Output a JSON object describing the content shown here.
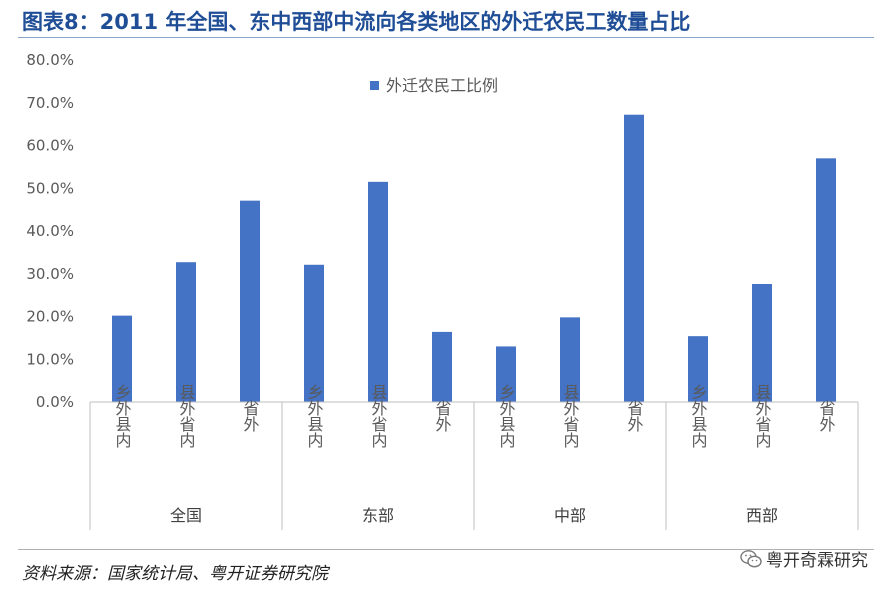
{
  "header": {
    "title": "图表8：2011 年全国、东中西部中流向各类地区的外迁农民工数量占比"
  },
  "footer": {
    "source": "资料来源：国家统计局、粤开证券研究院",
    "watermark": "粤开奇霖研究"
  },
  "colors": {
    "bar": "#4472c4",
    "title": "#1f4e96"
  },
  "chart_data": {
    "type": "bar",
    "title": "",
    "legend": {
      "position": "top",
      "entries": [
        "外迁农民工比例"
      ]
    },
    "yticks": [
      "0.0%",
      "10.0%",
      "20.0%",
      "30.0%",
      "40.0%",
      "50.0%",
      "60.0%",
      "70.0%",
      "80.0%"
    ],
    "ylim": [
      0,
      80
    ],
    "groups": [
      "全国",
      "东部",
      "中部",
      "西部"
    ],
    "categories": [
      "乡外县内",
      "县外省内",
      "省外"
    ],
    "series": [
      {
        "name": "外迁农民工比例",
        "values": [
          [
            20.2,
            32.7,
            47.1
          ],
          [
            32.1,
            51.5,
            16.4
          ],
          [
            13.0,
            19.8,
            67.2
          ],
          [
            15.4,
            27.6,
            57.0
          ]
        ]
      }
    ]
  }
}
